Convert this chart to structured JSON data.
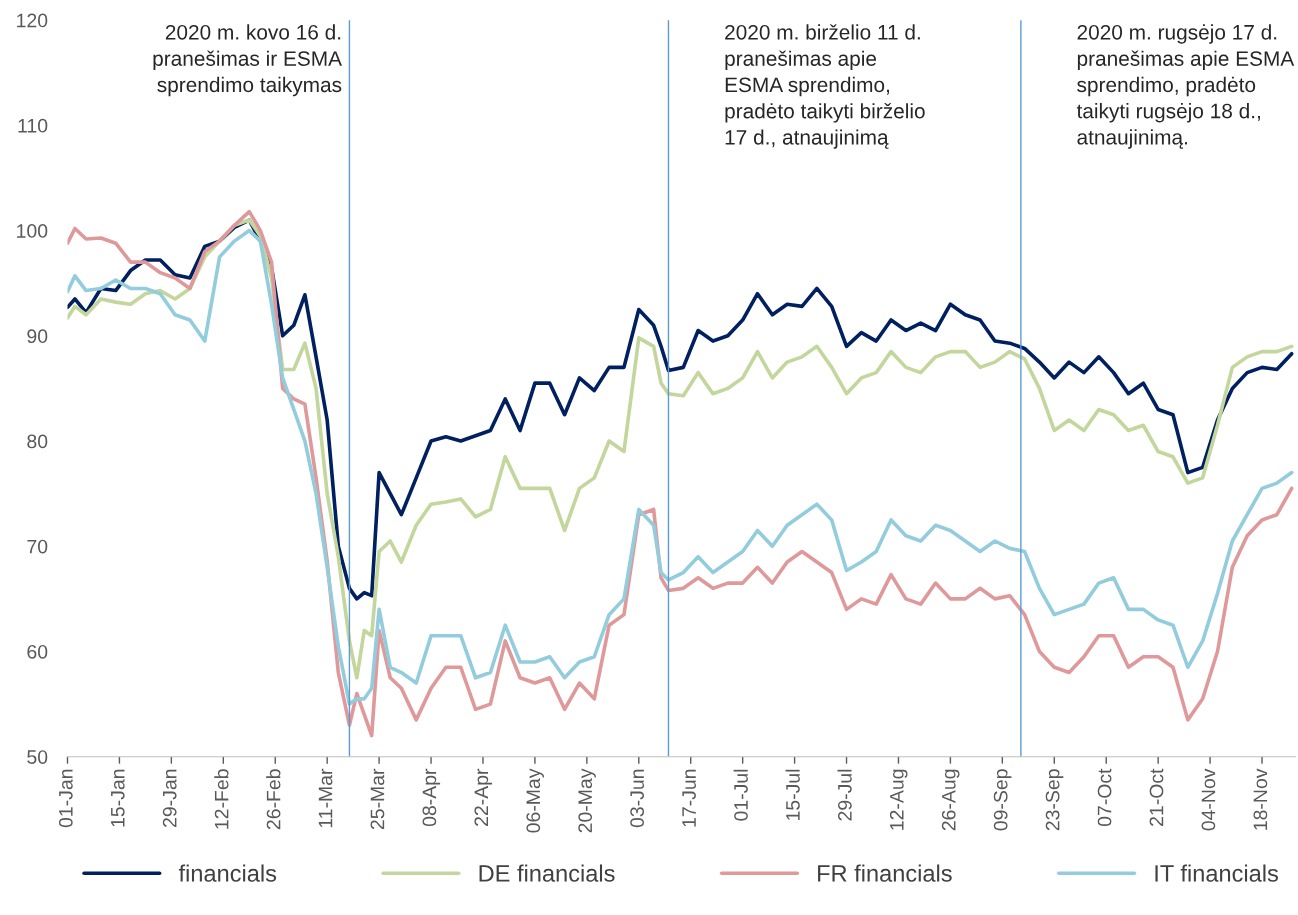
{
  "chart_data": {
    "type": "line",
    "x": [
      "2020-01-01",
      "2020-01-03",
      "2020-01-06",
      "2020-01-10",
      "2020-01-14",
      "2020-01-18",
      "2020-01-22",
      "2020-01-26",
      "2020-01-30",
      "2020-02-03",
      "2020-02-07",
      "2020-02-11",
      "2020-02-15",
      "2020-02-19",
      "2020-02-22",
      "2020-02-25",
      "2020-02-28",
      "2020-03-02",
      "2020-03-05",
      "2020-03-08",
      "2020-03-11",
      "2020-03-14",
      "2020-03-17",
      "2020-03-19",
      "2020-03-21",
      "2020-03-23",
      "2020-03-25",
      "2020-03-28",
      "2020-03-31",
      "2020-04-04",
      "2020-04-08",
      "2020-04-12",
      "2020-04-16",
      "2020-04-20",
      "2020-04-24",
      "2020-04-28",
      "2020-05-02",
      "2020-05-06",
      "2020-05-10",
      "2020-05-14",
      "2020-05-18",
      "2020-05-22",
      "2020-05-26",
      "2020-05-30",
      "2020-06-03",
      "2020-06-07",
      "2020-06-09",
      "2020-06-11",
      "2020-06-15",
      "2020-06-19",
      "2020-06-23",
      "2020-06-27",
      "2020-07-01",
      "2020-07-05",
      "2020-07-09",
      "2020-07-13",
      "2020-07-17",
      "2020-07-21",
      "2020-07-25",
      "2020-07-29",
      "2020-08-02",
      "2020-08-06",
      "2020-08-10",
      "2020-08-14",
      "2020-08-18",
      "2020-08-22",
      "2020-08-26",
      "2020-08-30",
      "2020-09-03",
      "2020-09-07",
      "2020-09-11",
      "2020-09-15",
      "2020-09-19",
      "2020-09-23",
      "2020-09-27",
      "2020-10-01",
      "2020-10-05",
      "2020-10-09",
      "2020-10-13",
      "2020-10-17",
      "2020-10-21",
      "2020-10-25",
      "2020-10-29",
      "2020-11-02",
      "2020-11-06",
      "2020-11-10",
      "2020-11-14",
      "2020-11-18",
      "2020-11-22",
      "2020-11-26"
    ],
    "series": [
      {
        "name": "financials",
        "color": "#002060",
        "values": [
          92.7,
          93.5,
          92.2,
          94.5,
          94.3,
          96.2,
          97.2,
          97.2,
          95.8,
          95.5,
          98.5,
          99.0,
          100.3,
          101.0,
          99.0,
          96.5,
          90.0,
          91.0,
          93.9,
          88.0,
          82.0,
          70.0,
          66.0,
          65.0,
          65.6,
          65.3,
          77.0,
          75.0,
          73.0,
          76.5,
          80.0,
          80.4,
          80.0,
          80.5,
          81.0,
          84.0,
          81.0,
          85.5,
          85.5,
          82.5,
          86.0,
          84.8,
          87.0,
          87.0,
          92.5,
          91.0,
          89.0,
          86.7,
          87.0,
          90.5,
          89.5,
          90.0,
          91.5,
          94.0,
          92.0,
          93.0,
          92.8,
          94.5,
          92.8,
          89.0,
          90.3,
          89.5,
          91.5,
          90.5,
          91.2,
          90.5,
          93.0,
          92.0,
          91.5,
          89.5,
          89.3,
          88.8,
          87.5,
          86.0,
          87.5,
          86.5,
          88.0,
          86.5,
          84.5,
          85.5,
          83.0,
          82.5,
          77.0,
          77.5,
          82.0,
          85.0,
          86.5,
          87.0,
          86.8,
          88.3
        ]
      },
      {
        "name": "DE financials",
        "color": "#c3d69b",
        "values": [
          91.7,
          92.8,
          92.0,
          93.5,
          93.2,
          93.0,
          94.0,
          94.3,
          93.5,
          94.5,
          97.5,
          99.0,
          100.5,
          101.0,
          99.5,
          95.5,
          86.8,
          86.8,
          89.3,
          85.0,
          75.0,
          69.0,
          61.0,
          57.5,
          62.0,
          61.5,
          69.5,
          70.5,
          68.5,
          72.0,
          74.0,
          74.2,
          74.5,
          72.8,
          73.5,
          78.5,
          75.5,
          75.5,
          75.5,
          71.5,
          75.5,
          76.5,
          80.0,
          79.0,
          89.8,
          89.0,
          85.5,
          84.5,
          84.3,
          86.5,
          84.5,
          85.0,
          86.0,
          88.5,
          86.0,
          87.5,
          88.0,
          89.0,
          87.0,
          84.5,
          86.0,
          86.5,
          88.5,
          87.0,
          86.5,
          88.0,
          88.5,
          88.5,
          87.0,
          87.5,
          88.5,
          87.8,
          85.0,
          81.0,
          82.0,
          81.0,
          83.0,
          82.5,
          81.0,
          81.5,
          79.0,
          78.5,
          76.0,
          76.5,
          81.5,
          87.0,
          88.0,
          88.5,
          88.5,
          89.0
        ]
      },
      {
        "name": "FR financials",
        "color": "#e0999a",
        "values": [
          98.8,
          100.2,
          99.2,
          99.3,
          98.8,
          97.0,
          97.0,
          96.0,
          95.5,
          94.5,
          98.0,
          99.0,
          100.5,
          101.8,
          100.0,
          97.0,
          85.0,
          84.0,
          83.5,
          76.5,
          68.6,
          58.0,
          53.0,
          56.0,
          54.0,
          52.0,
          62.0,
          57.5,
          56.5,
          53.5,
          56.5,
          58.5,
          58.5,
          54.5,
          55.0,
          61.0,
          57.5,
          57.0,
          57.5,
          54.5,
          57.0,
          55.5,
          62.5,
          63.5,
          73.0,
          73.5,
          67.0,
          65.8,
          66.0,
          67.0,
          66.0,
          66.5,
          66.5,
          68.0,
          66.5,
          68.5,
          69.5,
          68.5,
          67.5,
          64.0,
          65.0,
          64.5,
          67.3,
          65.0,
          64.5,
          66.5,
          65.0,
          65.0,
          66.0,
          65.0,
          65.3,
          63.5,
          60.0,
          58.5,
          58.0,
          59.5,
          61.5,
          61.5,
          58.5,
          59.5,
          59.5,
          58.5,
          53.5,
          55.5,
          60.0,
          68.0,
          71.0,
          72.5,
          73.0,
          75.5
        ]
      },
      {
        "name": "IT financials",
        "color": "#93cddd",
        "values": [
          94.2,
          95.7,
          94.3,
          94.5,
          95.3,
          94.5,
          94.5,
          94.0,
          92.0,
          91.5,
          89.5,
          97.5,
          99.0,
          100.0,
          99.0,
          93.0,
          86.0,
          83.0,
          80.0,
          75.0,
          68.0,
          60.5,
          55.0,
          55.5,
          55.5,
          56.5,
          64.0,
          58.5,
          58.0,
          57.0,
          61.5,
          61.5,
          61.5,
          57.5,
          58.0,
          62.5,
          59.0,
          59.0,
          59.5,
          57.5,
          59.0,
          59.5,
          63.5,
          65.0,
          73.5,
          72.0,
          67.5,
          66.8,
          67.5,
          69.0,
          67.5,
          68.5,
          69.5,
          71.5,
          70.0,
          72.0,
          73.0,
          74.0,
          72.5,
          67.7,
          68.5,
          69.5,
          72.5,
          71.0,
          70.5,
          72.0,
          71.5,
          70.5,
          69.5,
          70.5,
          69.8,
          69.5,
          66.0,
          63.5,
          64.0,
          64.5,
          66.5,
          67.0,
          64.0,
          64.0,
          63.0,
          62.5,
          58.5,
          61.0,
          65.5,
          70.5,
          73.0,
          75.5,
          76.0,
          77.0
        ]
      }
    ],
    "xlim": [
      "2020-01-01",
      "2020-11-27"
    ],
    "xticks": [
      {
        "value": "2020-01-01",
        "label": "01-Jan"
      },
      {
        "value": "2020-01-15",
        "label": "15-Jan"
      },
      {
        "value": "2020-01-29",
        "label": "29-Jan"
      },
      {
        "value": "2020-02-12",
        "label": "12-Feb"
      },
      {
        "value": "2020-02-26",
        "label": "26-Feb"
      },
      {
        "value": "2020-03-11",
        "label": "11-Mar"
      },
      {
        "value": "2020-03-25",
        "label": "25-Mar"
      },
      {
        "value": "2020-04-08",
        "label": "08-Apr"
      },
      {
        "value": "2020-04-22",
        "label": "22-Apr"
      },
      {
        "value": "2020-05-06",
        "label": "06-May"
      },
      {
        "value": "2020-05-20",
        "label": "20-May"
      },
      {
        "value": "2020-06-03",
        "label": "03-Jun"
      },
      {
        "value": "2020-06-17",
        "label": "17-Jun"
      },
      {
        "value": "2020-07-01",
        "label": "01-Jul"
      },
      {
        "value": "2020-07-15",
        "label": "15-Jul"
      },
      {
        "value": "2020-07-29",
        "label": "29-Jul"
      },
      {
        "value": "2020-08-12",
        "label": "12-Aug"
      },
      {
        "value": "2020-08-26",
        "label": "26-Aug"
      },
      {
        "value": "2020-09-09",
        "label": "09-Sep"
      },
      {
        "value": "2020-09-23",
        "label": "23-Sep"
      },
      {
        "value": "2020-10-07",
        "label": "07-Oct"
      },
      {
        "value": "2020-10-21",
        "label": "21-Oct"
      },
      {
        "value": "2020-11-04",
        "label": "04-Nov"
      },
      {
        "value": "2020-11-18",
        "label": "18-Nov"
      }
    ],
    "ylim": [
      50,
      120
    ],
    "yticks": [
      50,
      60,
      70,
      80,
      90,
      100,
      110,
      120
    ],
    "ref_lines": [
      {
        "axis": "x",
        "value": "2020-03-17",
        "label": "2020 m. kovo 16 d.\npranešimas ir ESMA\nsprendimo taikymas",
        "color": "#5b9bd5"
      },
      {
        "axis": "x",
        "value": "2020-06-11",
        "label": "2020 m. birželio 11 d.\npranešimas apie\nESMA sprendimo,\npradėto taikyti birželio\n17 d., atnaujinimą",
        "color": "#5b9bd5"
      },
      {
        "axis": "x",
        "value": "2020-09-14",
        "label": "2020 m. rugsėjo 17 d.\npranešimas apie ESMA\nsprendimo, pradėto\ntaikyti rugsėjo 18 d.,\natnaujinimą.",
        "color": "#5b9bd5"
      }
    ],
    "grid": false,
    "legend": "bottom",
    "line_style": "solid",
    "marker": "none"
  }
}
